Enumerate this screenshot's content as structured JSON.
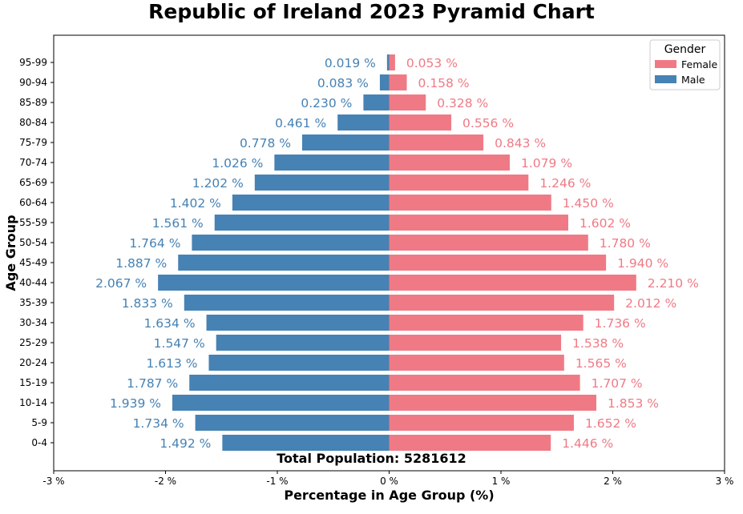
{
  "chart_data": {
    "type": "bar",
    "orientation": "horizontal",
    "title": "Republic of Ireland 2023 Pyramid Chart",
    "xlabel": "Percentage in Age Group (%)",
    "ylabel": "Age Group",
    "xlim": [
      -3,
      3
    ],
    "x_ticks": [
      -3,
      -2,
      -1,
      0,
      1,
      2,
      3
    ],
    "x_tick_labels": [
      "-3 %",
      "-2 %",
      "-1 %",
      "0 %",
      "1 %",
      "2 %",
      "3 %"
    ],
    "grid": false,
    "categories": [
      "0-4",
      "5-9",
      "10-14",
      "15-19",
      "20-24",
      "25-29",
      "30-34",
      "35-39",
      "40-44",
      "45-49",
      "50-54",
      "55-59",
      "60-64",
      "65-69",
      "70-74",
      "75-79",
      "80-84",
      "85-89",
      "90-94",
      "95-99"
    ],
    "series": [
      {
        "name": "Female",
        "color": "#EF7A85",
        "values": [
          1.446,
          1.652,
          1.853,
          1.707,
          1.565,
          1.538,
          1.736,
          2.012,
          2.21,
          1.94,
          1.78,
          1.602,
          1.45,
          1.246,
          1.079,
          0.843,
          0.556,
          0.328,
          0.158,
          0.053
        ],
        "labels": [
          "1.446 %",
          "1.652 %",
          "1.853 %",
          "1.707 %",
          "1.565 %",
          "1.538 %",
          "1.736 %",
          "2.012 %",
          "2.210 %",
          "1.940 %",
          "1.780 %",
          "1.602 %",
          "1.450 %",
          "1.246 %",
          "1.079 %",
          "0.843 %",
          "0.556 %",
          "0.328 %",
          "0.158 %",
          "0.053 %"
        ]
      },
      {
        "name": "Male",
        "color": "#4682B4",
        "values": [
          -1.492,
          -1.734,
          -1.939,
          -1.787,
          -1.613,
          -1.547,
          -1.634,
          -1.833,
          -2.067,
          -1.887,
          -1.764,
          -1.561,
          -1.402,
          -1.202,
          -1.026,
          -0.778,
          -0.461,
          -0.23,
          -0.083,
          -0.019
        ],
        "labels": [
          "1.492 %",
          "1.734 %",
          "1.939 %",
          "1.787 %",
          "1.613 %",
          "1.547 %",
          "1.634 %",
          "1.833 %",
          "2.067 %",
          "1.887 %",
          "1.764 %",
          "1.561 %",
          "1.402 %",
          "1.202 %",
          "1.026 %",
          "0.778 %",
          "0.461 %",
          "0.230 %",
          "0.083 %",
          "0.019 %"
        ]
      }
    ],
    "legend": {
      "title": "Gender",
      "position": "top-right",
      "entries": [
        "Female",
        "Male"
      ]
    },
    "annotation": "Total Population: 5281612"
  }
}
